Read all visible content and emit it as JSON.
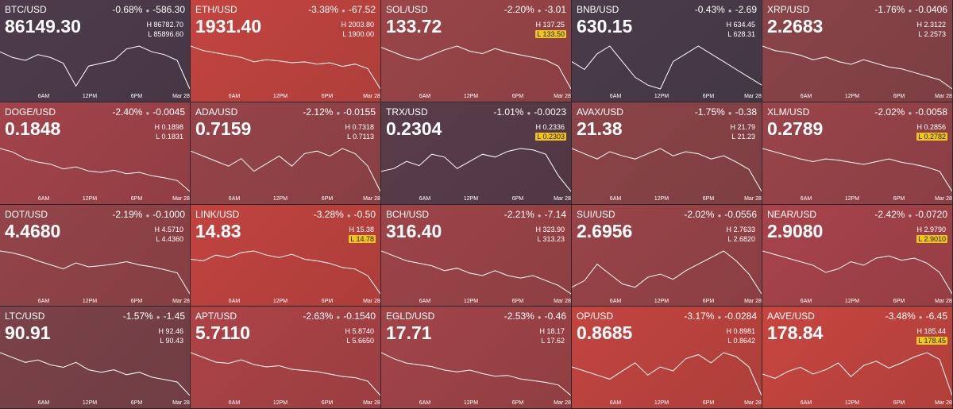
{
  "time_labels": [
    "6AM",
    "12PM",
    "6PM",
    "Mar 28"
  ],
  "tiles": [
    {
      "pair": "BTC/USD",
      "pct": "-0.68%",
      "change": "-586.30",
      "price": "86149.30",
      "high": "86782.70",
      "low": "85896.60",
      "low_highlight": false,
      "color": "#4d3b4c",
      "spark": [
        86550,
        86450,
        86400,
        86500,
        86450,
        86350,
        85950,
        86300,
        86350,
        86400,
        86600,
        86650,
        86550,
        86500,
        86400,
        85900
      ]
    },
    {
      "pair": "ETH/USD",
      "pct": "-3.38%",
      "change": "-67.52",
      "price": "1931.40",
      "high": "2003.80",
      "low": "1900.00",
      "low_highlight": false,
      "color": "#c4443f",
      "spark": [
        1995,
        1985,
        1980,
        1975,
        1970,
        1960,
        1965,
        1962,
        1958,
        1960,
        1955,
        1958,
        1950,
        1955,
        1945,
        1900
      ]
    },
    {
      "pair": "SOL/USD",
      "pct": "-2.20%",
      "change": "-3.01",
      "price": "133.72",
      "high": "137.25",
      "low": "133.50",
      "low_highlight": true,
      "color": "#9b4548",
      "spark": [
        136.8,
        136.4,
        136.0,
        135.8,
        136.2,
        136.6,
        136.9,
        136.5,
        136.3,
        136.7,
        136.4,
        136.2,
        136.0,
        135.8,
        135.3,
        133.5
      ]
    },
    {
      "pair": "BNB/USD",
      "pct": "-0.43%",
      "change": "-2.69",
      "price": "630.15",
      "high": "634.45",
      "low": "628.31",
      "low_highlight": false,
      "color": "#4a3b4b",
      "spark": [
        632,
        631,
        633,
        634,
        632,
        630,
        629,
        628.5,
        632,
        633,
        634,
        633,
        632,
        631,
        630,
        629
      ]
    },
    {
      "pair": "XRP/USD",
      "pct": "-1.76%",
      "change": "-0.0406",
      "price": "2.2683",
      "high": "2.3122",
      "low": "2.2573",
      "low_highlight": false,
      "color": "#8a4448",
      "spark": [
        2.305,
        2.3,
        2.298,
        2.295,
        2.29,
        2.293,
        2.288,
        2.285,
        2.29,
        2.286,
        2.282,
        2.28,
        2.276,
        2.272,
        2.268,
        2.258
      ]
    },
    {
      "pair": "DOGE/USD",
      "pct": "-2.40%",
      "change": "-0.0045",
      "price": "0.1848",
      "high": "0.1898",
      "low": "0.1831",
      "low_highlight": false,
      "color": "#a3434a",
      "spark": [
        0.1895,
        0.189,
        0.188,
        0.1875,
        0.1872,
        0.1865,
        0.1868,
        0.1862,
        0.186,
        0.1863,
        0.1858,
        0.186,
        0.1855,
        0.1852,
        0.1848,
        0.1832
      ]
    },
    {
      "pair": "ADA/USD",
      "pct": "-2.12%",
      "change": "-0.0155",
      "price": "0.7159",
      "high": "0.7318",
      "low": "0.7113",
      "low_highlight": false,
      "color": "#974449",
      "spark": [
        0.728,
        0.726,
        0.724,
        0.722,
        0.725,
        0.72,
        0.723,
        0.726,
        0.722,
        0.727,
        0.728,
        0.726,
        0.729,
        0.727,
        0.722,
        0.712
      ]
    },
    {
      "pair": "TRX/USD",
      "pct": "-1.01%",
      "change": "-0.0023",
      "price": "0.2304",
      "high": "0.2336",
      "low": "0.2303",
      "low_highlight": true,
      "color": "#593c4a",
      "spark": [
        0.2318,
        0.232,
        0.2325,
        0.2322,
        0.233,
        0.2328,
        0.232,
        0.2325,
        0.233,
        0.2328,
        0.2332,
        0.2334,
        0.2333,
        0.233,
        0.2315,
        0.2304
      ]
    },
    {
      "pair": "AVAX/USD",
      "pct": "-1.75%",
      "change": "-0.38",
      "price": "21.38",
      "high": "21.79",
      "low": "21.23",
      "low_highlight": false,
      "color": "#8c4448",
      "spark": [
        21.65,
        21.6,
        21.55,
        21.62,
        21.58,
        21.55,
        21.6,
        21.65,
        21.58,
        21.62,
        21.6,
        21.55,
        21.58,
        21.52,
        21.45,
        21.24
      ]
    },
    {
      "pair": "XLM/USD",
      "pct": "-2.02%",
      "change": "-0.0058",
      "price": "0.2789",
      "high": "0.2856",
      "low": "0.2782",
      "low_highlight": true,
      "color": "#9a444a",
      "spark": [
        0.2845,
        0.284,
        0.2835,
        0.283,
        0.2826,
        0.283,
        0.2828,
        0.2825,
        0.2822,
        0.2826,
        0.283,
        0.2825,
        0.2822,
        0.2818,
        0.2812,
        0.2783
      ]
    },
    {
      "pair": "DOT/USD",
      "pct": "-2.19%",
      "change": "-0.1000",
      "price": "4.4680",
      "high": "4.5710",
      "low": "4.4360",
      "low_highlight": false,
      "color": "#944449",
      "spark": [
        4.545,
        4.54,
        4.532,
        4.52,
        4.51,
        4.5,
        4.515,
        4.505,
        4.508,
        4.512,
        4.518,
        4.51,
        4.505,
        4.498,
        4.49,
        4.437
      ]
    },
    {
      "pair": "LINK/USD",
      "pct": "-3.28%",
      "change": "-0.50",
      "price": "14.83",
      "high": "15.38",
      "low": "14.78",
      "low_highlight": true,
      "color": "#c2433f",
      "spark": [
        15.2,
        15.18,
        15.25,
        15.22,
        15.28,
        15.3,
        15.25,
        15.22,
        15.26,
        15.2,
        15.18,
        15.15,
        15.1,
        15.08,
        15.0,
        14.78
      ]
    },
    {
      "pair": "BCH/USD",
      "pct": "-2.21%",
      "change": "-7.14",
      "price": "316.40",
      "high": "323.90",
      "low": "313.23",
      "low_highlight": false,
      "color": "#9e4448",
      "spark": [
        322,
        321,
        320,
        319.5,
        319,
        318,
        318.5,
        317.5,
        317,
        318,
        317,
        316.5,
        317,
        316,
        315,
        313.3
      ]
    },
    {
      "pair": "SUI/USD",
      "pct": "-2.02%",
      "change": "-0.0556",
      "price": "2.6956",
      "high": "2.7633",
      "low": "2.6820",
      "low_highlight": false,
      "color": "#9a4449",
      "spark": [
        2.7,
        2.71,
        2.735,
        2.72,
        2.705,
        2.7,
        2.715,
        2.72,
        2.712,
        2.725,
        2.735,
        2.745,
        2.755,
        2.74,
        2.72,
        2.69
      ]
    },
    {
      "pair": "NEAR/USD",
      "pct": "-2.42%",
      "change": "-0.0720",
      "price": "2.9080",
      "high": "2.9790",
      "low": "2.9010",
      "low_highlight": true,
      "color": "#a8434a",
      "spark": [
        2.965,
        2.96,
        2.955,
        2.95,
        2.945,
        2.935,
        2.94,
        2.95,
        2.945,
        2.955,
        2.958,
        2.952,
        2.955,
        2.948,
        2.935,
        2.905
      ]
    },
    {
      "pair": "LTC/USD",
      "pct": "-1.57%",
      "change": "-1.45",
      "price": "90.91",
      "high": "92.46",
      "low": "90.43",
      "low_highlight": false,
      "color": "#7b4249",
      "spark": [
        92.2,
        92.0,
        91.8,
        91.9,
        91.7,
        91.6,
        91.8,
        91.5,
        91.4,
        91.5,
        91.3,
        91.4,
        91.2,
        91.1,
        91.0,
        90.45
      ]
    },
    {
      "pair": "APT/USD",
      "pct": "-2.63%",
      "change": "-0.1540",
      "price": "5.7110",
      "high": "5.8740",
      "low": "5.6650",
      "low_highlight": false,
      "color": "#ad4347",
      "spark": [
        5.85,
        5.83,
        5.81,
        5.805,
        5.82,
        5.8,
        5.79,
        5.795,
        5.78,
        5.775,
        5.77,
        5.76,
        5.75,
        5.745,
        5.73,
        5.67
      ]
    },
    {
      "pair": "EGLD/USD",
      "pct": "-2.53%",
      "change": "-0.46",
      "price": "17.71",
      "high": "18.17",
      "low": "17.62",
      "low_highlight": false,
      "color": "#a24448",
      "spark": [
        18.12,
        18.05,
        18.0,
        17.98,
        17.96,
        17.92,
        17.9,
        17.92,
        17.88,
        17.85,
        17.86,
        17.82,
        17.8,
        17.78,
        17.75,
        17.63
      ]
    },
    {
      "pair": "OP/USD",
      "pct": "-3.17%",
      "change": "-0.0284",
      "price": "0.8685",
      "high": "0.8981",
      "low": "0.8642",
      "low_highlight": false,
      "color": "#c3443f",
      "spark": [
        0.882,
        0.88,
        0.878,
        0.876,
        0.88,
        0.884,
        0.878,
        0.882,
        0.88,
        0.886,
        0.888,
        0.884,
        0.889,
        0.887,
        0.882,
        0.868
      ]
    },
    {
      "pair": "AAVE/USD",
      "pct": "-3.48%",
      "change": "-6.45",
      "price": "178.84",
      "high": "185.44",
      "low": "178.45",
      "low_highlight": true,
      "color": "#c7453f",
      "spark": [
        181.5,
        181.0,
        181.8,
        182.3,
        181.5,
        182.0,
        182.8,
        181.2,
        182.5,
        183.0,
        182.2,
        182.8,
        183.5,
        184.0,
        183.2,
        179.0
      ]
    }
  ]
}
